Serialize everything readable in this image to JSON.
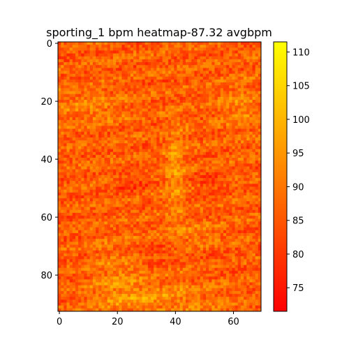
{
  "chart_data": {
    "type": "heatmap",
    "title": "sporting_1 bpm heatmap-87.32 avgbpm",
    "xlabel": "",
    "ylabel": "",
    "grid": false,
    "colormap": "autumn_r",
    "colormap_stops": [
      "#ff0000",
      "#ffff00"
    ],
    "x_range": [
      0,
      70
    ],
    "y_range": [
      0,
      93
    ],
    "x_ticks": [
      0,
      20,
      40,
      60
    ],
    "y_ticks": [
      0,
      20,
      40,
      60,
      80
    ],
    "value_range": [
      71.5,
      111.5
    ],
    "colorbar_ticks": [
      75,
      80,
      85,
      90,
      95,
      100,
      105,
      110
    ],
    "mean_value": 87.32,
    "grid_size": {
      "cols": 70,
      "rows": 93
    },
    "note_cells": "Per-cell bpm values form a face-like pattern; individual cell values are not printed and are approximated procedurally."
  }
}
